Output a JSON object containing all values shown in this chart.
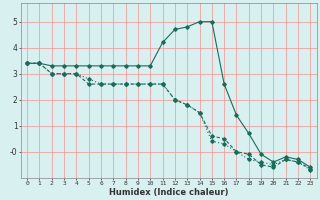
{
  "xlabel": "Humidex (Indice chaleur)",
  "bg_color": "#d8f0f0",
  "grid_color": "#f0a0a0",
  "line_color": "#1a6b5a",
  "xlim": [
    -0.5,
    23.5
  ],
  "ylim": [
    -1.0,
    5.7
  ],
  "yticks": [
    0,
    1,
    2,
    3,
    4,
    5
  ],
  "ytick_labels": [
    "-0",
    "1",
    "2",
    "3",
    "4",
    "5"
  ],
  "xticks": [
    0,
    1,
    2,
    3,
    4,
    5,
    6,
    7,
    8,
    9,
    10,
    11,
    12,
    13,
    14,
    15,
    16,
    17,
    18,
    19,
    20,
    21,
    22,
    23
  ],
  "line1_x": [
    0,
    1,
    2,
    3,
    4,
    5,
    6,
    7,
    8,
    9,
    10,
    11,
    12,
    13,
    14,
    15,
    16,
    17,
    18,
    19,
    20,
    21,
    22,
    23
  ],
  "line1_y": [
    3.4,
    3.4,
    3.3,
    3.3,
    3.3,
    3.3,
    3.3,
    3.3,
    3.3,
    3.3,
    3.3,
    4.2,
    4.7,
    4.8,
    5.0,
    5.0,
    2.6,
    1.4,
    0.7,
    -0.1,
    -0.4,
    -0.2,
    -0.3,
    -0.6
  ],
  "line2_x": [
    0,
    1,
    2,
    3,
    4,
    5,
    6,
    7,
    8,
    9,
    10,
    11,
    12,
    13,
    14,
    15,
    16,
    17,
    18,
    19,
    20,
    21,
    22,
    23
  ],
  "line2_y": [
    3.4,
    3.4,
    3.0,
    3.0,
    3.0,
    2.6,
    2.6,
    2.6,
    2.6,
    2.6,
    2.6,
    2.6,
    2.0,
    1.8,
    1.5,
    0.6,
    0.5,
    0.0,
    -0.1,
    -0.5,
    -0.6,
    -0.3,
    -0.4,
    -0.65
  ],
  "line3_x": [
    0,
    1,
    2,
    3,
    4,
    5,
    6,
    7,
    8,
    9,
    10,
    11,
    12,
    13,
    14,
    15,
    16,
    17,
    18,
    19,
    20,
    21,
    22,
    23
  ],
  "line3_y": [
    3.4,
    3.4,
    3.0,
    3.0,
    3.0,
    2.8,
    2.6,
    2.6,
    2.6,
    2.6,
    2.6,
    2.6,
    2.0,
    1.8,
    1.5,
    0.4,
    0.3,
    0.0,
    -0.3,
    -0.4,
    -0.5,
    -0.3,
    -0.4,
    -0.7
  ],
  "xlabel_fontsize": 6.0,
  "ytick_fontsize": 5.5,
  "xtick_fontsize": 4.5,
  "linewidth": 0.8,
  "markersize": 1.8
}
